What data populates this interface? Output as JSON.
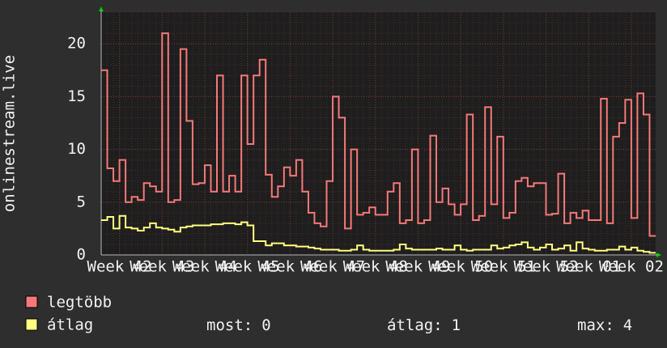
{
  "chart_data": {
    "type": "step",
    "y_label": "onlinestream.live",
    "x": [
      0,
      1,
      2,
      3,
      4,
      5,
      6,
      7,
      8,
      9,
      10,
      11,
      12,
      13,
      14,
      15,
      16,
      17,
      18,
      19,
      20,
      21,
      22,
      23,
      24,
      25,
      26,
      27,
      28,
      29,
      30,
      31,
      32,
      33,
      34,
      35,
      36,
      37,
      38,
      39,
      40,
      41,
      42,
      43,
      44,
      45,
      46,
      47,
      48,
      49,
      50,
      51,
      52,
      53,
      54,
      55,
      56,
      57,
      58,
      59,
      60,
      61,
      62,
      63,
      64,
      65,
      66,
      67,
      68,
      69,
      70,
      71,
      72,
      73,
      74,
      75,
      76,
      77,
      78,
      79,
      80,
      81,
      82,
      83,
      84,
      85,
      86,
      87,
      88,
      89,
      90
    ],
    "xlim": [
      0,
      91
    ],
    "xticks": [
      {
        "value": 3,
        "label": "Week 42"
      },
      {
        "value": 10,
        "label": "Week 43"
      },
      {
        "value": 17,
        "label": "Week 44"
      },
      {
        "value": 24,
        "label": "Week 45"
      },
      {
        "value": 31,
        "label": "Week 46"
      },
      {
        "value": 38,
        "label": "Week 47"
      },
      {
        "value": 45,
        "label": "Week 48"
      },
      {
        "value": 52,
        "label": "Week 49"
      },
      {
        "value": 59,
        "label": "Week 50"
      },
      {
        "value": 66,
        "label": "Week 51"
      },
      {
        "value": 73,
        "label": "Week 52"
      },
      {
        "value": 80,
        "label": "Week 01"
      },
      {
        "value": 87,
        "label": "Week 02"
      }
    ],
    "ylim": [
      0,
      23
    ],
    "yticks": [
      0,
      5,
      10,
      15,
      20
    ],
    "grid": true,
    "series": [
      {
        "name": "legtöbb",
        "color": "#f87878",
        "values": [
          17.5,
          8.2,
          7,
          9,
          5,
          5.5,
          5.2,
          6.8,
          6.5,
          6,
          21,
          5,
          5.2,
          19.5,
          12.7,
          6.7,
          6.8,
          8.5,
          6,
          17,
          6,
          7.5,
          6,
          17,
          10.5,
          17,
          18.5,
          7.6,
          5.5,
          6.5,
          8.3,
          7.5,
          9,
          6,
          4,
          3,
          2.7,
          7,
          15,
          13,
          2.5,
          10,
          3.8,
          4,
          4.5,
          3.8,
          3.8,
          6,
          6.8,
          3,
          3.3,
          10,
          3,
          3.3,
          11.3,
          5,
          6.3,
          4.8,
          3.8,
          4.8,
          13.3,
          3.3,
          3.7,
          14,
          4.8,
          11.2,
          3.5,
          4,
          7,
          7.3,
          6.5,
          6.8,
          6.8,
          3.8,
          3.9,
          7.7,
          3,
          4,
          3.5,
          4.2,
          3.3,
          3.3,
          14.8,
          3,
          11.2,
          12.5,
          14.7,
          3.5,
          15.3,
          13.3,
          1.8
        ]
      },
      {
        "name": "átlag",
        "color": "#ffff80",
        "values": [
          3.3,
          3.6,
          2.5,
          3.7,
          2.6,
          2.5,
          2.3,
          2.6,
          3,
          2.6,
          2.5,
          2.4,
          2.2,
          2.6,
          2.7,
          2.8,
          2.8,
          2.8,
          2.9,
          2.9,
          3,
          3,
          2.9,
          3.1,
          2.8,
          1.3,
          1.3,
          0.9,
          1.1,
          1.1,
          0.9,
          0.9,
          0.8,
          0.8,
          0.7,
          0.6,
          0.5,
          0.5,
          0.5,
          0.4,
          0.4,
          0.5,
          0.9,
          0.5,
          0.4,
          0.4,
          0.4,
          0.4,
          0.5,
          1.0,
          0.6,
          0.5,
          0.5,
          0.5,
          0.5,
          0.6,
          0.5,
          0.5,
          0.9,
          0.5,
          0.4,
          0.5,
          0.5,
          0.5,
          0.9,
          0.6,
          0.7,
          0.9,
          1.0,
          1.2,
          0.7,
          0.5,
          0.7,
          1.0,
          0.5,
          0.6,
          0.9,
          0.4,
          1.2,
          0.6,
          0.5,
          0.4,
          0.4,
          0.5,
          0.5,
          0.8,
          0.5,
          0.7,
          0.4,
          0.3,
          0.2
        ]
      }
    ],
    "stats": [
      {
        "label": "most:",
        "value": 0
      },
      {
        "label": "átlag:",
        "value": 1
      },
      {
        "label": "max:",
        "value": 4
      }
    ]
  }
}
